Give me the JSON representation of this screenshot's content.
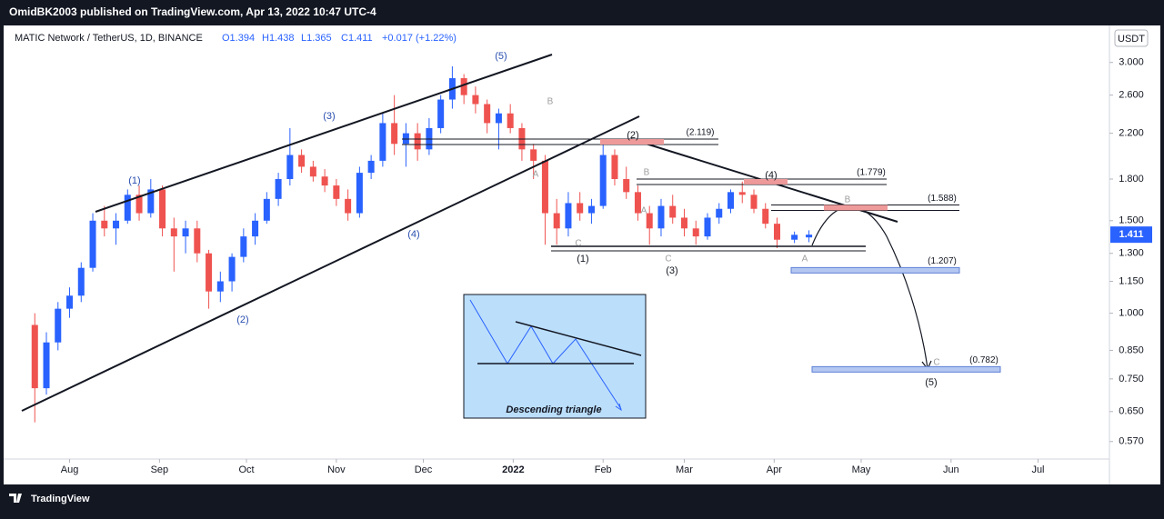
{
  "header": {
    "publisher": "OmidBK2003 published on TradingView.com, Apr 13, 2022 10:47 UTC-4"
  },
  "chart_data": {
    "type": "candlestick",
    "title": "MATIC Network / TetherUS, 1D, BINANCE",
    "ohlc_labels": [
      "O1.394",
      "H1.438",
      "L1.365",
      "C1.411",
      "+0.017 (+1.22%)"
    ],
    "x": [
      -12,
      -8,
      -4,
      0,
      4,
      8,
      12,
      16,
      20,
      24,
      28,
      32,
      36,
      40,
      44,
      48,
      52,
      56,
      60,
      64,
      68,
      72,
      76,
      80,
      84,
      88,
      92,
      96,
      100,
      104,
      108,
      112,
      116,
      120,
      124,
      128,
      132,
      136,
      140,
      144,
      148,
      152,
      156,
      160,
      164,
      168,
      172,
      176,
      180,
      184,
      188,
      192,
      196,
      200,
      204,
      208,
      212,
      216,
      220,
      224,
      228,
      232,
      236,
      240,
      244,
      250,
      255
    ],
    "open": [
      0.95,
      0.72,
      0.88,
      1.02,
      1.08,
      1.22,
      1.5,
      1.45,
      1.5,
      1.68,
      1.55,
      1.72,
      1.45,
      1.4,
      1.45,
      1.3,
      1.1,
      1.15,
      1.28,
      1.4,
      1.5,
      1.65,
      1.8,
      2.0,
      1.9,
      1.82,
      1.75,
      1.65,
      1.55,
      1.85,
      1.95,
      2.3,
      2.1,
      2.2,
      2.05,
      2.25,
      2.55,
      2.8,
      2.6,
      2.5,
      2.3,
      2.4,
      2.25,
      2.05,
      1.95,
      1.55,
      1.45,
      1.62,
      1.55,
      1.6,
      2.0,
      1.8,
      1.7,
      1.55,
      1.45,
      1.6,
      1.52,
      1.45,
      1.4,
      1.52,
      1.58,
      1.7,
      1.68,
      1.58,
      1.48,
      1.38,
      1.394
    ],
    "high": [
      1.0,
      0.92,
      1.05,
      1.12,
      1.25,
      1.55,
      1.6,
      1.55,
      1.72,
      1.75,
      1.8,
      1.75,
      1.52,
      1.5,
      1.5,
      1.32,
      1.2,
      1.3,
      1.45,
      1.55,
      1.7,
      1.85,
      2.25,
      2.05,
      1.95,
      1.88,
      1.8,
      1.72,
      1.9,
      2.0,
      2.4,
      2.6,
      2.3,
      2.3,
      2.35,
      2.6,
      2.95,
      2.85,
      2.7,
      2.55,
      2.45,
      2.5,
      2.3,
      2.1,
      2.0,
      1.65,
      1.7,
      1.7,
      1.65,
      2.1,
      2.05,
      1.9,
      1.75,
      1.6,
      1.65,
      1.68,
      1.58,
      1.5,
      1.55,
      1.62,
      1.72,
      1.78,
      1.72,
      1.62,
      1.52,
      1.43,
      1.438
    ],
    "low": [
      0.62,
      0.7,
      0.85,
      0.98,
      1.05,
      1.2,
      1.4,
      1.35,
      1.48,
      1.5,
      1.52,
      1.4,
      1.2,
      1.3,
      1.25,
      1.02,
      1.05,
      1.1,
      1.25,
      1.35,
      1.48,
      1.6,
      1.75,
      1.85,
      1.78,
      1.7,
      1.6,
      1.5,
      1.52,
      1.8,
      1.9,
      2.0,
      1.9,
      1.95,
      2.0,
      2.2,
      2.45,
      2.5,
      2.4,
      2.2,
      2.05,
      2.2,
      1.95,
      1.8,
      1.35,
      1.35,
      1.4,
      1.5,
      1.48,
      1.58,
      1.75,
      1.65,
      1.5,
      1.35,
      1.4,
      1.48,
      1.4,
      1.35,
      1.38,
      1.48,
      1.55,
      1.62,
      1.55,
      1.45,
      1.33,
      1.36,
      1.365
    ],
    "close": [
      0.72,
      0.88,
      1.02,
      1.08,
      1.22,
      1.5,
      1.45,
      1.5,
      1.68,
      1.55,
      1.72,
      1.45,
      1.4,
      1.45,
      1.3,
      1.1,
      1.15,
      1.28,
      1.4,
      1.5,
      1.65,
      1.8,
      2.0,
      1.9,
      1.82,
      1.75,
      1.65,
      1.55,
      1.85,
      1.95,
      2.3,
      2.1,
      2.2,
      2.05,
      2.25,
      2.55,
      2.8,
      2.6,
      2.5,
      2.3,
      2.4,
      2.25,
      2.05,
      1.95,
      1.55,
      1.45,
      1.62,
      1.55,
      1.6,
      2.0,
      1.8,
      1.7,
      1.55,
      1.45,
      1.6,
      1.52,
      1.45,
      1.4,
      1.52,
      1.58,
      1.7,
      1.68,
      1.58,
      1.48,
      1.38,
      1.41,
      1.411
    ],
    "up_color": "#2962ff",
    "down_color": "#ef5350",
    "log_scale": true,
    "ylim": [
      0.528,
      3.5
    ],
    "yticks": [
      {
        "value": 3,
        "label": "3.000"
      },
      {
        "value": 2.6,
        "label": "2.600"
      },
      {
        "value": 2.2,
        "label": "2.200"
      },
      {
        "value": 1.8,
        "label": "1.800"
      },
      {
        "value": 1.5,
        "label": "1.500"
      },
      {
        "value": 1.3,
        "label": "1.300"
      },
      {
        "value": 1.15,
        "label": "1.150"
      },
      {
        "value": 1,
        "label": "1.000"
      },
      {
        "value": 0.85,
        "label": "0.850"
      },
      {
        "value": 0.75,
        "label": "0.750"
      },
      {
        "value": 0.65,
        "label": "0.650"
      },
      {
        "value": 0.57,
        "label": "0.570"
      }
    ],
    "xlim": [
      -24,
      358
    ],
    "xticks": [
      {
        "value": 0,
        "label": "Aug"
      },
      {
        "value": 31,
        "label": "Sep"
      },
      {
        "value": 61,
        "label": "Oct"
      },
      {
        "value": 92,
        "label": "Nov"
      },
      {
        "value": 122,
        "label": "Dec"
      },
      {
        "value": 153,
        "label": "2022"
      },
      {
        "value": 184,
        "label": "Feb"
      },
      {
        "value": 212,
        "label": "Mar"
      },
      {
        "value": 243,
        "label": "Apr"
      },
      {
        "value": 273,
        "label": "May"
      },
      {
        "value": 304,
        "label": "Jun"
      },
      {
        "value": 334,
        "label": "Jul"
      }
    ],
    "last_price": {
      "value": 1.411,
      "label": "1.411"
    },
    "currency": "USDT",
    "levels": [
      {
        "value": 2.119,
        "label": "(2.119)"
      },
      {
        "value": 1.779,
        "label": "(1.779)"
      },
      {
        "value": 1.588,
        "label": "(1.588)"
      },
      {
        "value": 1.207,
        "label": "(1.207)"
      },
      {
        "value": 0.782,
        "label": "(0.782)"
      }
    ],
    "wave_labels": [
      "(1)",
      "(2)",
      "(3)",
      "(4)",
      "(5)",
      "B",
      "A",
      "C",
      "(1)",
      "(2)",
      "B",
      "A",
      "C",
      "(3)",
      "(4)",
      "B",
      "A",
      "C",
      "(5)"
    ],
    "inset_label": "Descending triangle"
  },
  "footer": {
    "brand": "TradingView"
  }
}
